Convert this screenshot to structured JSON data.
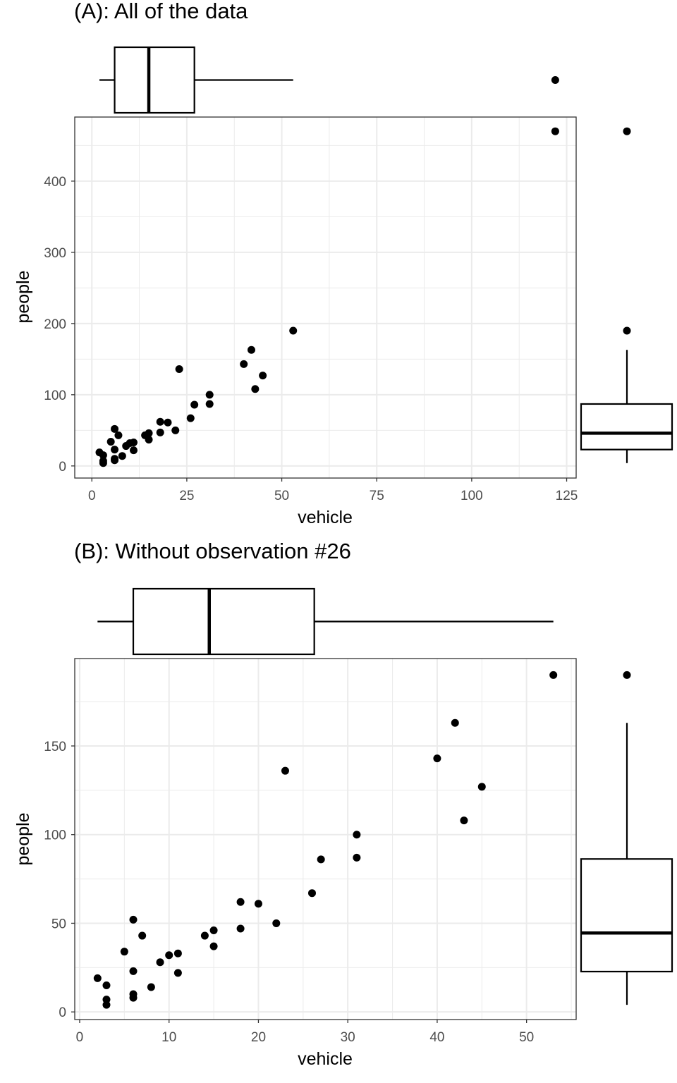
{
  "chart_data": [
    {
      "type": "scatter",
      "title": "(A): All of the data",
      "xlabel": "vehicle",
      "ylabel": "people",
      "xlim": [
        -4.5,
        127.5
      ],
      "ylim": [
        -17,
        490
      ],
      "xticks": [
        0,
        25,
        50,
        75,
        100,
        125
      ],
      "yticks": [
        0,
        100,
        200,
        300,
        400
      ],
      "grid": true,
      "marginal_boxplots": true,
      "points": [
        [
          2,
          19
        ],
        [
          3,
          15
        ],
        [
          3,
          7
        ],
        [
          3,
          4
        ],
        [
          5,
          34
        ],
        [
          6,
          52
        ],
        [
          6,
          23
        ],
        [
          6,
          10
        ],
        [
          6,
          8
        ],
        [
          7,
          43
        ],
        [
          8,
          14
        ],
        [
          9,
          28
        ],
        [
          10,
          32
        ],
        [
          11,
          33
        ],
        [
          11,
          22
        ],
        [
          14,
          43
        ],
        [
          15,
          46
        ],
        [
          15,
          37
        ],
        [
          18,
          62
        ],
        [
          18,
          47
        ],
        [
          20,
          61
        ],
        [
          22,
          50
        ],
        [
          23,
          136
        ],
        [
          26,
          67
        ],
        [
          27,
          86
        ],
        [
          31,
          100
        ],
        [
          31,
          87
        ],
        [
          40,
          143
        ],
        [
          42,
          163
        ],
        [
          43,
          108
        ],
        [
          45,
          127
        ],
        [
          53,
          190
        ],
        [
          122,
          470
        ]
      ],
      "x_boxplot": {
        "whisker_low": 2,
        "q1": 6,
        "median": 15,
        "q3": 27,
        "whisker_high": 53,
        "outliers": [
          122
        ]
      },
      "y_boxplot": {
        "whisker_low": 4,
        "q1": 23,
        "median": 46,
        "q3": 87,
        "whisker_high": 163,
        "outliers": [
          190,
          470
        ]
      }
    },
    {
      "type": "scatter",
      "title": "(B): Without observation #26",
      "xlabel": "vehicle",
      "ylabel": "people",
      "xlim": [
        -0.55,
        55.55
      ],
      "ylim": [
        -4.3,
        199.3
      ],
      "xticks": [
        0,
        10,
        20,
        30,
        40,
        50
      ],
      "yticks": [
        0,
        50,
        100,
        150
      ],
      "grid": true,
      "marginal_boxplots": true,
      "points": [
        [
          2,
          19
        ],
        [
          3,
          15
        ],
        [
          3,
          7
        ],
        [
          3,
          4
        ],
        [
          5,
          34
        ],
        [
          6,
          52
        ],
        [
          6,
          23
        ],
        [
          6,
          10
        ],
        [
          6,
          8
        ],
        [
          7,
          43
        ],
        [
          8,
          14
        ],
        [
          9,
          28
        ],
        [
          10,
          32
        ],
        [
          11,
          33
        ],
        [
          11,
          22
        ],
        [
          14,
          43
        ],
        [
          15,
          46
        ],
        [
          15,
          37
        ],
        [
          18,
          62
        ],
        [
          18,
          47
        ],
        [
          20,
          61
        ],
        [
          22,
          50
        ],
        [
          23,
          136
        ],
        [
          26,
          67
        ],
        [
          27,
          86
        ],
        [
          31,
          100
        ],
        [
          31,
          87
        ],
        [
          40,
          143
        ],
        [
          42,
          163
        ],
        [
          43,
          108
        ],
        [
          45,
          127
        ],
        [
          53,
          190
        ]
      ],
      "x_boxplot": {
        "whisker_low": 2,
        "q1": 6,
        "median": 14.5,
        "q3": 26.25,
        "whisker_high": 53,
        "outliers": []
      },
      "y_boxplot": {
        "whisker_low": 4,
        "q1": 22.75,
        "median": 44.5,
        "q3": 86.25,
        "whisker_high": 163,
        "outliers": [
          190
        ]
      }
    }
  ]
}
